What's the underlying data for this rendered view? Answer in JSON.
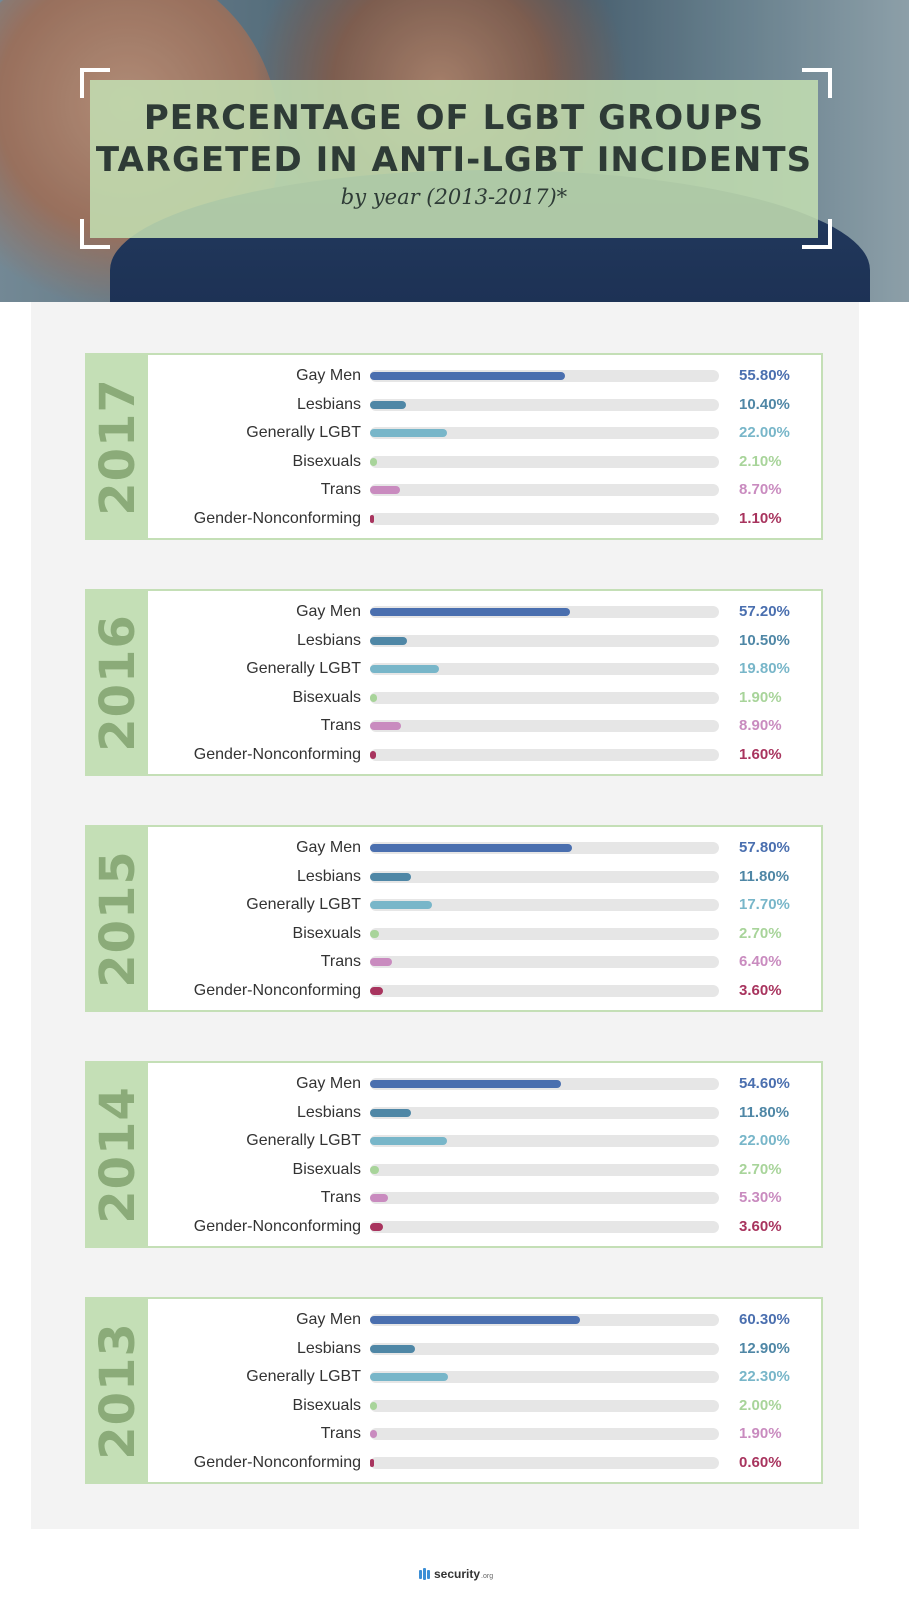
{
  "header": {
    "title_line1": "PERCENTAGE OF LGBT GROUPS",
    "title_line2": "TARGETED IN ANTI-LGBT INCIDENTS",
    "subtitle": "by year (2013-2017)*"
  },
  "colors": {
    "Gay Men": "#4a6faf",
    "Lesbians": "#4f87a6",
    "Generally LGBT": "#78b6c9",
    "Bisexuals": "#a8d49a",
    "Trans": "#c98bbf",
    "Gender-Nonconforming": "#a8345e"
  },
  "chart_data": {
    "type": "bar",
    "orientation": "horizontal",
    "xlim": [
      0,
      100
    ],
    "categories": [
      "Gay Men",
      "Lesbians",
      "Generally LGBT",
      "Bisexuals",
      "Trans",
      "Gender-Nonconforming"
    ],
    "groups": [
      {
        "year": "2017",
        "values": [
          55.8,
          10.4,
          22.0,
          2.1,
          8.7,
          1.1
        ],
        "labels": [
          "55.80%",
          "10.40%",
          "22.00%",
          "2.10%",
          "8.70%",
          "1.10%"
        ]
      },
      {
        "year": "2016",
        "values": [
          57.2,
          10.5,
          19.8,
          1.9,
          8.9,
          1.6
        ],
        "labels": [
          "57.20%",
          "10.50%",
          "19.80%",
          "1.90%",
          "8.90%",
          "1.60%"
        ]
      },
      {
        "year": "2015",
        "values": [
          57.8,
          11.8,
          17.7,
          2.7,
          6.4,
          3.6
        ],
        "labels": [
          "57.80%",
          "11.80%",
          "17.70%",
          "2.70%",
          "6.40%",
          "3.60%"
        ]
      },
      {
        "year": "2014",
        "values": [
          54.6,
          11.8,
          22.0,
          2.7,
          5.3,
          3.6
        ],
        "labels": [
          "54.60%",
          "11.80%",
          "22.00%",
          "2.70%",
          "5.30%",
          "3.60%"
        ]
      },
      {
        "year": "2013",
        "values": [
          60.3,
          12.9,
          22.3,
          2.0,
          1.9,
          0.6
        ],
        "labels": [
          "60.30%",
          "12.90%",
          "22.30%",
          "2.00%",
          "1.90%",
          "0.60%"
        ]
      }
    ]
  },
  "footer": {
    "logo_text": "security",
    "logo_tld": ".org",
    "logo_icon": "security-org-logo-icon"
  }
}
